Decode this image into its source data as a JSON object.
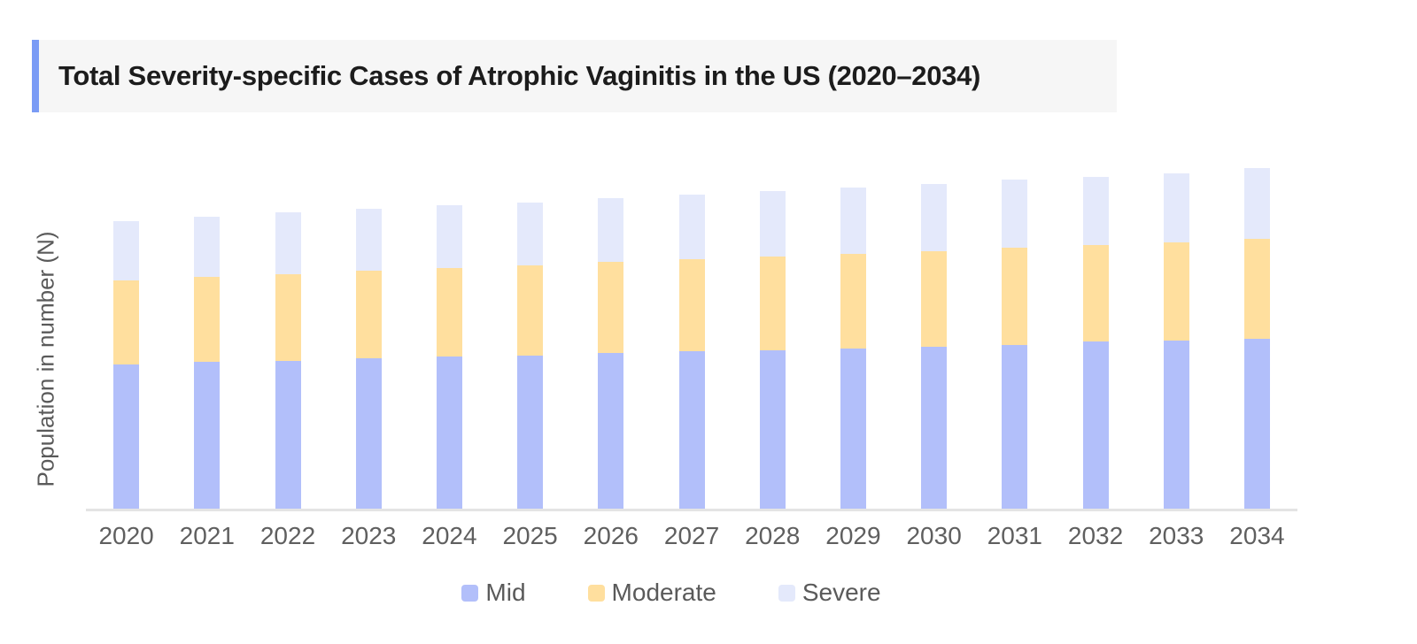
{
  "chart_data": {
    "type": "bar",
    "stacked": true,
    "title": "Total Severity-specific Cases of Atrophic Vaginitis in the US (2020–2034)",
    "xlabel": "",
    "ylabel": "Population in number (N)",
    "categories": [
      "2020",
      "2021",
      "2022",
      "2023",
      "2024",
      "2025",
      "2026",
      "2027",
      "2028",
      "2029",
      "2030",
      "2031",
      "2032",
      "2033",
      "2034"
    ],
    "series": [
      {
        "name": "Mid",
        "color": "#b2bffa",
        "values": [
          163,
          166,
          167,
          170,
          172,
          173,
          176,
          178,
          179,
          181,
          183,
          185,
          189,
          190,
          192
        ]
      },
      {
        "name": "Moderate",
        "color": "#ffdf9e",
        "values": [
          95,
          96,
          98,
          99,
          100,
          102,
          103,
          104,
          106,
          107,
          108,
          110,
          109,
          111,
          113
        ]
      },
      {
        "name": "Severe",
        "color": "#e4e9fb",
        "values": [
          67,
          68,
          70,
          70,
          71,
          71,
          72,
          73,
          74,
          75,
          76,
          77,
          77,
          78,
          80
        ]
      }
    ],
    "value_unit": "relative segment heights in screen pixels (y axis shows no numeric tick labels)",
    "ylim": [
      0,
      390
    ],
    "grid": false,
    "legend_position": "bottom-center"
  },
  "style": {
    "accent_bar_color": "#7a9bf5",
    "title_background": "#f6f6f6",
    "title_text_color": "#1c1c1c",
    "axis_line_color": "#e4e4e4",
    "tick_text_color": "#5f5f5f",
    "legend_text_color": "#5a5a5a"
  }
}
